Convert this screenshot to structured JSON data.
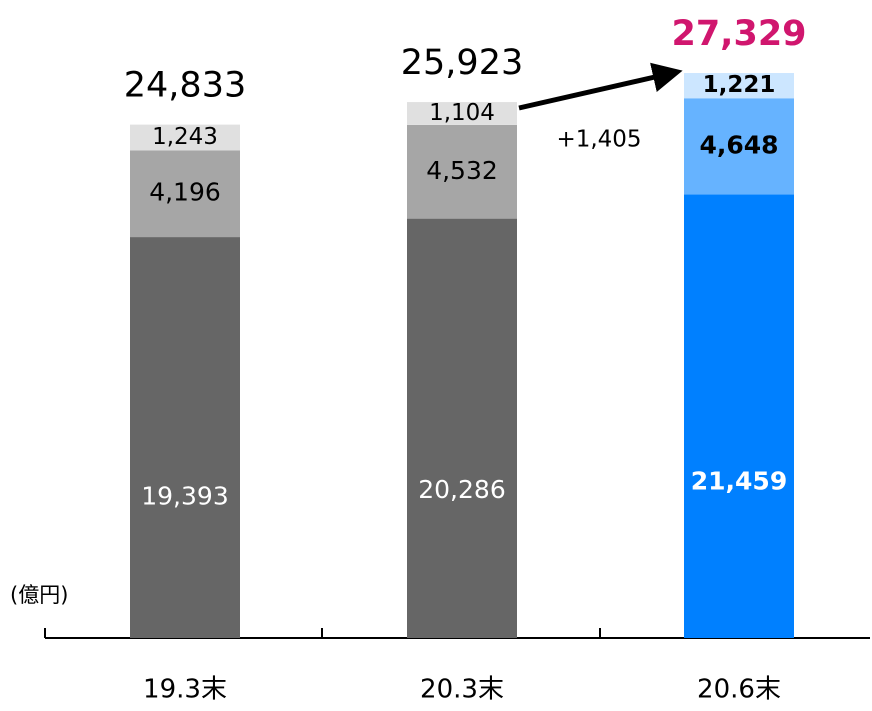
{
  "chart_data": {
    "type": "stacked_bar",
    "unit_label": "(億円)",
    "categories": [
      "19.3末",
      "20.3末",
      "20.6末"
    ],
    "series": [
      {
        "colors": [
          "#666666",
          "#666666",
          "#0080ff"
        ],
        "values": [
          19393,
          20286,
          21459
        ],
        "value_labels": [
          "19,393",
          "20,286",
          "21,459"
        ]
      },
      {
        "colors": [
          "#a6a6a6",
          "#a6a6a6",
          "#66b3ff"
        ],
        "values": [
          4196,
          4532,
          4648
        ],
        "value_labels": [
          "4,196",
          "4,532",
          "4,648"
        ]
      },
      {
        "colors": [
          "#e0e0e0",
          "#e0e0e0",
          "#cce6ff"
        ],
        "values": [
          1243,
          1104,
          1221
        ],
        "value_labels": [
          "1,243",
          "1,104",
          "1,221"
        ]
      }
    ],
    "totals": [
      24833,
      25923,
      27329
    ],
    "total_labels": [
      "24,833",
      "25,923",
      "27,329"
    ],
    "annotation": "+1,405",
    "highlight_color": "#d0166e"
  }
}
